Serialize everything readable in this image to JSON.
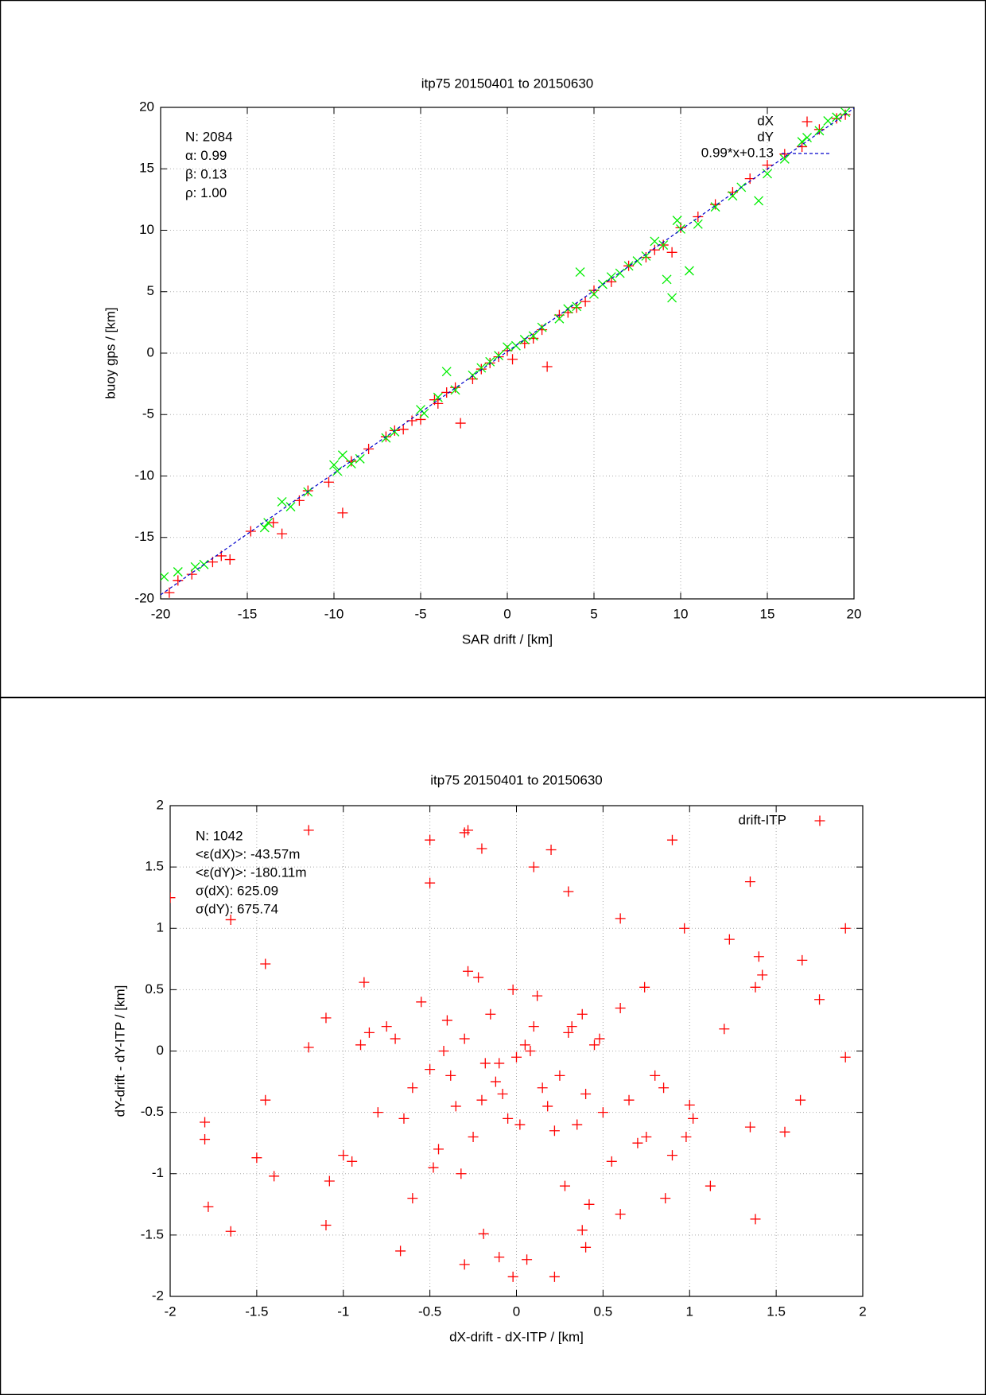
{
  "chart_data": [
    {
      "type": "scatter",
      "title": "itp75 20150401 to 20150630",
      "x_label": "SAR drift / [km]",
      "y_label": "buoy gps / [km]",
      "xlim": [
        -20,
        20
      ],
      "ylim": [
        -20,
        20
      ],
      "xticks": [
        -20,
        -15,
        -10,
        -5,
        0,
        5,
        10,
        15,
        20
      ],
      "yticks": [
        -20,
        -15,
        -10,
        -5,
        0,
        5,
        10,
        15,
        20
      ],
      "grid": true,
      "legend": "upper right",
      "annotations": [
        "N: 2084",
        "α: 0.99",
        "β: 0.13",
        "ρ: 1.00"
      ],
      "series": [
        {
          "name": "dX",
          "color": "#ff0000",
          "marker": "+",
          "x": [
            -19.5,
            -19,
            -18.2,
            -17,
            -16.5,
            -16,
            -14.8,
            -13.5,
            -13,
            -12,
            -11.5,
            -10.3,
            -9.5,
            -9,
            -8,
            -7,
            -6.5,
            -6,
            -5.5,
            -5,
            -4.2,
            -4,
            -3.5,
            -3,
            -2.7,
            -2,
            -1.5,
            -1,
            -0.5,
            0,
            0.3,
            1,
            1.5,
            2,
            2.3,
            3,
            3.5,
            4,
            4.5,
            5,
            6,
            7,
            8,
            8.5,
            9,
            9.5,
            10,
            11,
            12,
            13,
            14,
            15,
            16,
            17,
            18,
            19,
            19.5
          ],
          "values": [
            -19.5,
            -18.5,
            -18,
            -17,
            -16.5,
            -16.8,
            -14.5,
            -13.8,
            -14.7,
            -12,
            -11.2,
            -10.5,
            -13,
            -8.8,
            -7.8,
            -6.8,
            -6.3,
            -6.2,
            -5.5,
            -5.4,
            -3.8,
            -4.1,
            -3.2,
            -2.8,
            -5.7,
            -2.1,
            -1.3,
            -0.8,
            -0.3,
            0.2,
            -0.5,
            0.8,
            1.2,
            1.9,
            -1.1,
            3.1,
            3.3,
            3.7,
            4.2,
            5.1,
            5.8,
            7.1,
            7.8,
            8.4,
            8.8,
            8.2,
            10.2,
            11.1,
            12.1,
            13.1,
            14.2,
            15.3,
            16.2,
            16.8,
            18.2,
            19.1,
            19.4
          ]
        },
        {
          "name": "dY",
          "color": "#00ee00",
          "marker": "x",
          "x": [
            -19.8,
            -19,
            -18,
            -17.5,
            -14,
            -13.8,
            -13,
            -12.5,
            -11.5,
            -10,
            -9.8,
            -9.5,
            -9,
            -8.5,
            -7,
            -6.5,
            -5,
            -4.8,
            -4,
            -3.5,
            -3,
            -2,
            -1.5,
            -1,
            -0.5,
            0,
            0.5,
            1,
            1.5,
            2,
            3,
            3.5,
            4,
            4.2,
            5,
            5.5,
            6,
            6.5,
            7,
            7.5,
            8,
            8.5,
            9,
            9.2,
            9.5,
            9.8,
            10,
            10.5,
            11,
            12,
            13,
            13.5,
            14.5,
            15,
            16,
            17,
            18,
            18.5,
            19,
            19.5
          ],
          "values": [
            -18.2,
            -17.8,
            -17.4,
            -17.2,
            -14.2,
            -13.8,
            -12.1,
            -12.5,
            -11.3,
            -9.1,
            -9.6,
            -8.3,
            -9,
            -8.6,
            -6.9,
            -6.4,
            -4.6,
            -4.9,
            -3.6,
            -1.5,
            -3,
            -1.8,
            -1.2,
            -0.7,
            -0.2,
            0.5,
            0.6,
            1.1,
            1.4,
            2.1,
            2.8,
            3.6,
            3.8,
            6.6,
            4.8,
            5.6,
            6.2,
            6.5,
            7.1,
            7.5,
            7.9,
            9.1,
            8.8,
            6,
            4.5,
            10.8,
            10.1,
            6.7,
            10.5,
            11.9,
            12.8,
            13.5,
            12.4,
            14.6,
            15.8,
            17.2,
            18.1,
            18.9,
            19.2,
            19.6
          ]
        },
        {
          "name": "0.99*x+0.13",
          "color": "#0000cc",
          "marker": "dashed-line",
          "x": [
            -20,
            20
          ],
          "values": [
            -19.67,
            19.93
          ]
        }
      ]
    },
    {
      "type": "scatter",
      "title": "itp75 20150401 to 20150630",
      "x_label": "dX-drift - dX-ITP / [km]",
      "y_label": "dY-drift - dY-ITP / [km]",
      "xlim": [
        -2,
        2
      ],
      "ylim": [
        -2,
        2
      ],
      "xticks": [
        -2,
        -1.5,
        -1,
        -0.5,
        0,
        0.5,
        1,
        1.5,
        2
      ],
      "yticks": [
        -2,
        -1.5,
        -1,
        -0.5,
        0,
        0.5,
        1,
        1.5,
        2
      ],
      "grid": true,
      "legend": "upper right",
      "annotations": [
        "N: 1042",
        "<ε(dX)>:  -43.57m",
        "<ε(dY)>: -180.11m",
        "σ(dX):  625.09",
        "σ(dY):  675.74"
      ],
      "series": [
        {
          "name": "drift-ITP",
          "color": "#ff0000",
          "marker": "+",
          "x": [
            -2,
            -1.65,
            -1.45,
            -1.2,
            -0.5,
            -0.5,
            -0.3,
            -0.28,
            -0.2,
            0.2,
            0.1,
            0.3,
            0.6,
            0.9,
            0.97,
            1.35,
            1.9,
            1.65,
            1.75,
            1.9,
            1.55,
            1.38,
            1.12,
            0.22,
            -0.02,
            -0.3,
            -0.67,
            -1.65,
            -1.78,
            -1.8,
            -1.8,
            -1.5,
            -1.1,
            -1.08,
            -1.4,
            -1.45,
            -1.1,
            -1.2,
            -0.88,
            0.38,
            0.4,
            0.6,
            -0.19,
            -0.1,
            0.06,
            0.86,
            1.23,
            1.4,
            1.42,
            1.38,
            1.64,
            1.35,
            1.0,
            0.98,
            1.2,
            0.74,
            -0.1,
            0.05,
            -0.2,
            0.15,
            -0.3,
            0.25,
            -0.05,
            0.1,
            -0.15,
            0.0,
            -0.25,
            0.3,
            -0.35,
            0.35,
            -0.4,
            0.4,
            -0.45,
            0.45,
            -0.5,
            0.5,
            -0.55,
            0.55,
            -0.6,
            0.6,
            -0.7,
            0.7,
            -0.8,
            0.8,
            -0.9,
            0.9,
            -0.12,
            0.12,
            -0.22,
            0.22,
            -0.08,
            0.08,
            -0.32,
            0.32,
            -0.18,
            0.18,
            -0.02,
            0.02,
            -0.28,
            0.28,
            -0.38,
            0.38,
            -0.48,
            0.48,
            -0.65,
            0.65,
            -0.75,
            0.75,
            -0.85,
            0.85,
            -1.0,
            1.02,
            -0.95,
            -0.6,
            0.42,
            -0.42
          ],
          "values": [
            1.25,
            1.07,
            0.71,
            1.8,
            1.72,
            1.37,
            1.78,
            1.8,
            1.65,
            1.64,
            1.5,
            1.3,
            1.08,
            1.72,
            1,
            1.38,
            1,
            0.74,
            0.42,
            -0.05,
            -0.66,
            -1.37,
            -1.1,
            -1.84,
            -1.84,
            -1.74,
            -1.63,
            -1.47,
            -1.27,
            -0.72,
            -0.58,
            -0.87,
            -1.42,
            -1.06,
            -1.02,
            -0.4,
            0.27,
            0.03,
            0.56,
            -1.46,
            -1.6,
            -1.33,
            -1.49,
            -1.68,
            -1.7,
            -1.2,
            0.91,
            0.77,
            0.62,
            0.52,
            -0.4,
            -0.62,
            -0.44,
            -0.7,
            0.18,
            0.52,
            -0.1,
            0.05,
            -0.4,
            -0.3,
            0.1,
            -0.2,
            -0.55,
            0.2,
            0.3,
            -0.05,
            -0.7,
            0.15,
            -0.45,
            -0.6,
            0.25,
            -0.35,
            -0.8,
            0.05,
            -0.15,
            -0.5,
            0.4,
            -0.9,
            -0.3,
            0.35,
            0.1,
            -0.75,
            -0.5,
            -0.2,
            0.05,
            -0.85,
            -0.25,
            0.45,
            0.6,
            -0.65,
            -0.35,
            0.0,
            -1.0,
            0.2,
            -0.1,
            -0.45,
            0.5,
            -0.6,
            0.65,
            -1.1,
            -0.2,
            0.3,
            -0.95,
            0.1,
            -0.55,
            -0.4,
            0.2,
            -0.7,
            0.15,
            -0.3,
            -0.85,
            -0.55,
            -0.9,
            -1.2,
            -1.25,
            0.0
          ]
        }
      ]
    }
  ]
}
